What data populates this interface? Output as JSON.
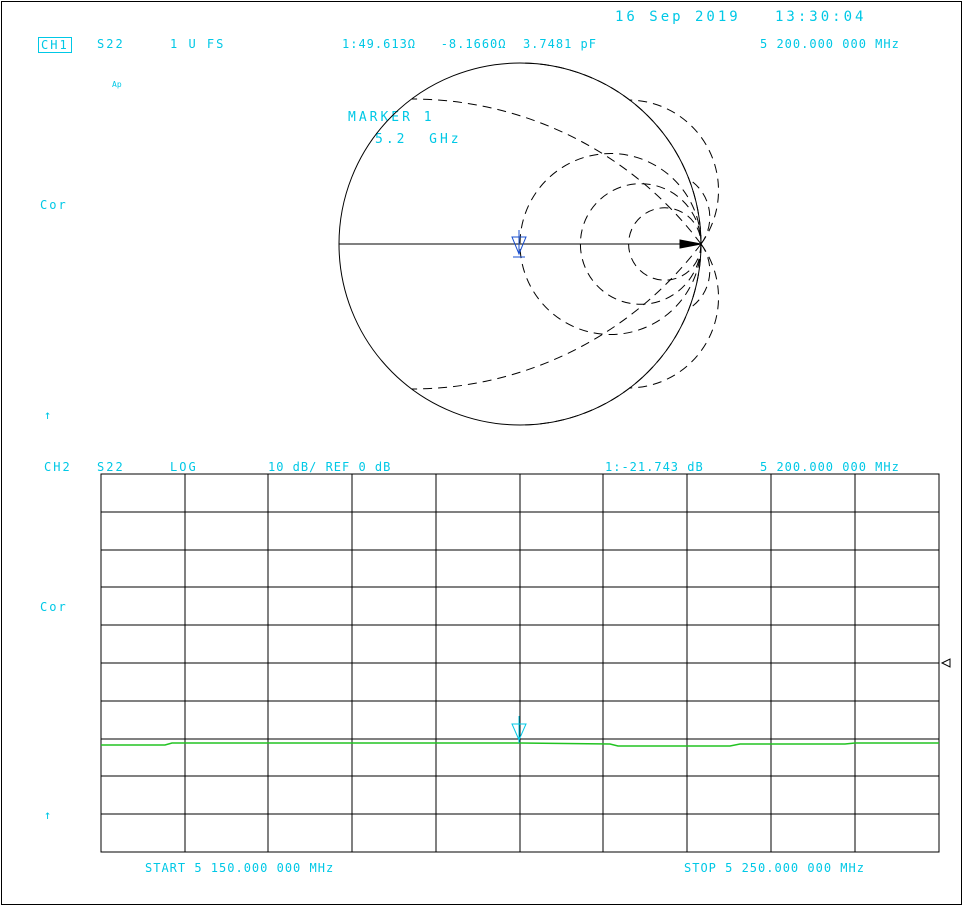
{
  "datetime": "16 Sep 2019   13:30:04",
  "ch1": {
    "channel": "CH1",
    "param": "S22",
    "format": "1 U FS",
    "marker_readout": "1:49.613Ω   -8.1660Ω  3.7481 pF",
    "frequency": "5 200.000 000 MHz",
    "avg_flag": "Ap",
    "cor_label": "Cor",
    "arrow_label": "↑",
    "marker_title": "MARKER 1",
    "marker_freq": "5.2  GHz"
  },
  "ch2": {
    "channel": "CH2",
    "param": "S22",
    "format": "LOG",
    "scale": "10 dB/ REF 0 dB",
    "marker_readout": "1:-21.743 dB",
    "frequency": "5 200.000 000 MHz",
    "cor_label": "Cor",
    "arrow_label": "↑",
    "start": "START 5 150.000 000 MHz",
    "stop": "STOP 5 250.000 000 MHz"
  },
  "colors": {
    "annotation": "#00c8e6",
    "trace": "#22c322",
    "marker": "#1a4fcf",
    "grid": "#000000"
  },
  "icons": {
    "marker": "marker-triangle-icon",
    "reference": "reference-position-icon"
  }
}
